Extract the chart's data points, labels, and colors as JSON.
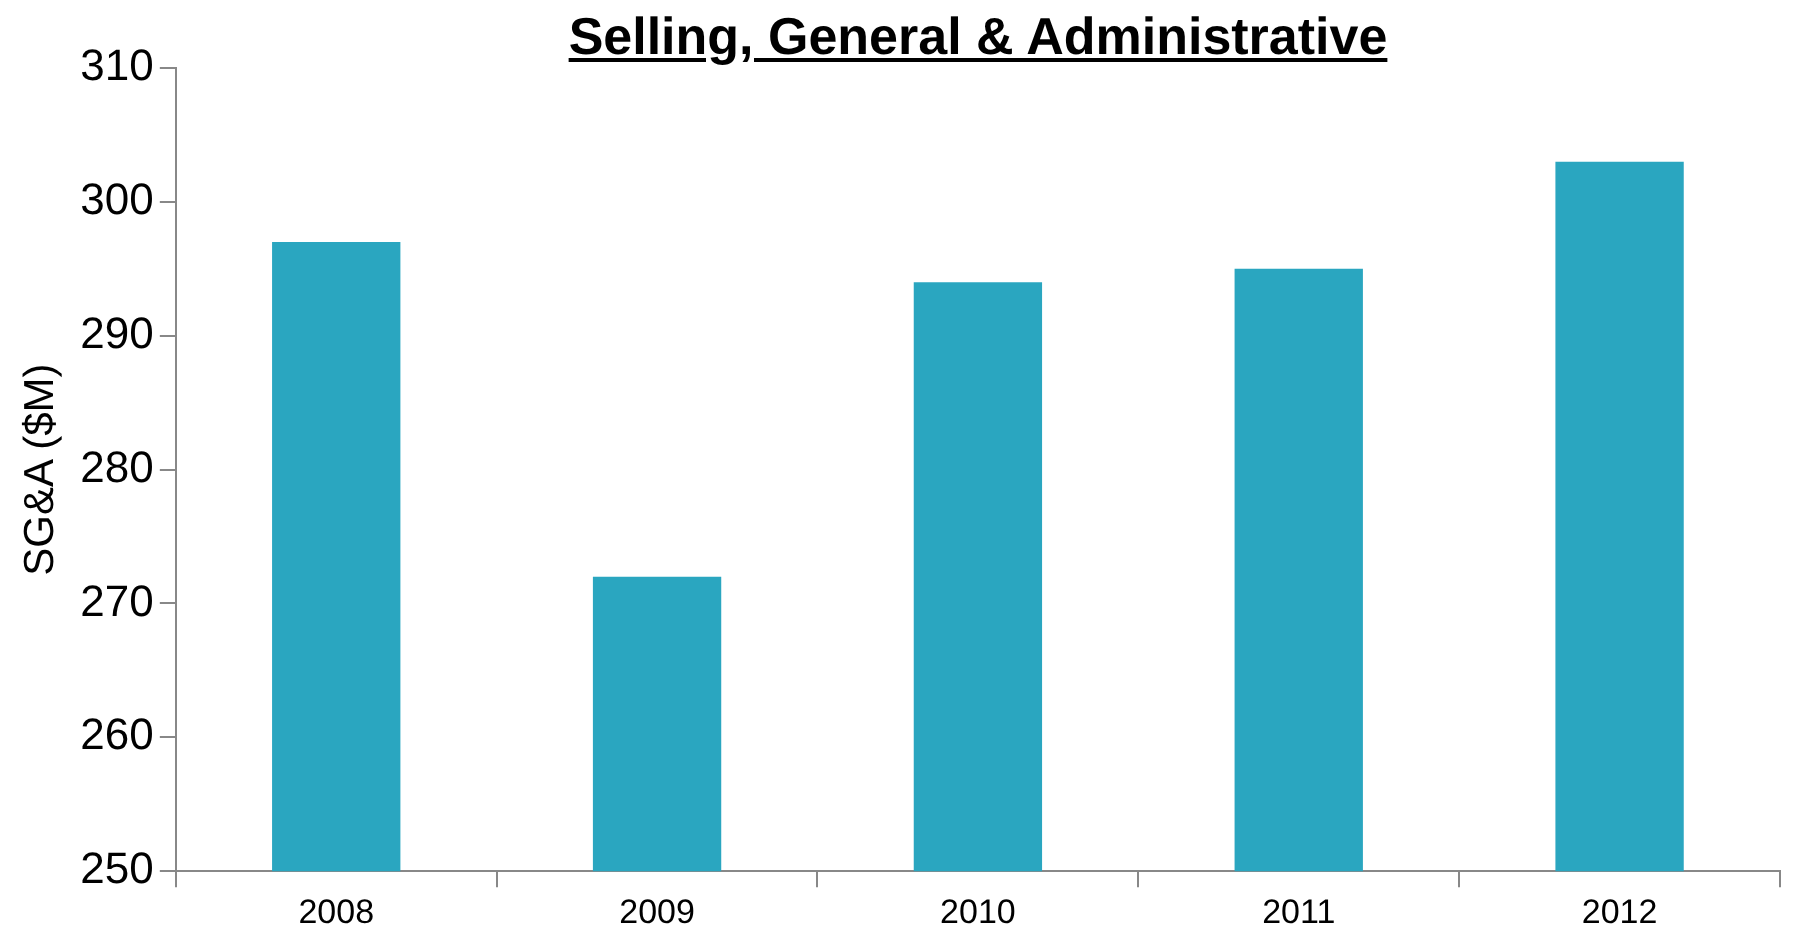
{
  "chart_data": {
    "type": "bar",
    "title": "Selling, General & Administrative",
    "ylabel": "SG&A ($M)",
    "categories": [
      "2008",
      "2009",
      "2010",
      "2011",
      "2012"
    ],
    "values": [
      297,
      272,
      294,
      295,
      303
    ],
    "color": "#2aa6c0",
    "ylim": [
      250,
      310
    ],
    "yticks": [
      250,
      260,
      270,
      280,
      290,
      300,
      310
    ],
    "grid": false,
    "legend": false
  }
}
